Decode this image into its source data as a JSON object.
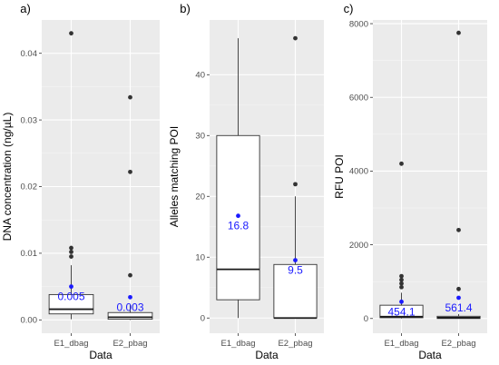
{
  "chart_data": [
    {
      "type": "box",
      "tag": "a)",
      "xlabel": "Data",
      "ylabel": "DNA concentration (ng/µL)",
      "ylim": [
        -0.002,
        0.045
      ],
      "yticks": [
        0.0,
        0.01,
        0.02,
        0.03,
        0.04
      ],
      "ytick_labels": [
        "0.00",
        "0.01",
        "0.02",
        "0.03",
        "0.04"
      ],
      "categories": [
        "E1_dbag",
        "E2_pbag"
      ],
      "boxes": [
        {
          "category": "E1_dbag",
          "q1": 0.0009,
          "median": 0.0016,
          "q3": 0.0038,
          "whisker_low": 0.0001,
          "whisker_high": 0.0082,
          "outliers": [
            0.0095,
            0.0102,
            0.0108,
            0.043
          ],
          "mean": 0.005,
          "mean_label": "0.005"
        },
        {
          "category": "E2_pbag",
          "q1": 0.0001,
          "median": 0.0004,
          "q3": 0.0011,
          "whisker_low": 0.0,
          "whisker_high": 0.0022,
          "outliers": [
            0.0067,
            0.0222,
            0.0334
          ],
          "mean": 0.0034,
          "mean_label": "0.003"
        }
      ]
    },
    {
      "type": "box",
      "tag": "b)",
      "xlabel": "Data",
      "ylabel": "Alleles matching POI",
      "ylim": [
        -2.5,
        49
      ],
      "yticks": [
        0,
        10,
        20,
        30,
        40
      ],
      "ytick_labels": [
        "0",
        "10",
        "20",
        "30",
        "40"
      ],
      "categories": [
        "E1_dbag",
        "E2_pbag"
      ],
      "boxes": [
        {
          "category": "E1_dbag",
          "q1": 3,
          "median": 8,
          "q3": 30,
          "whisker_low": 0,
          "whisker_high": 46,
          "outliers": [],
          "mean": 16.8,
          "mean_label": "16.8"
        },
        {
          "category": "E2_pbag",
          "q1": 0,
          "median": 0,
          "q3": 8.8,
          "whisker_low": 0,
          "whisker_high": 20,
          "outliers": [
            22,
            46
          ],
          "mean": 9.5,
          "mean_label": "9.5"
        }
      ]
    },
    {
      "type": "box",
      "tag": "c)",
      "xlabel": "Data",
      "ylabel": "RFU POI",
      "ylim": [
        -400,
        8100
      ],
      "yticks": [
        0,
        2000,
        4000,
        6000,
        8000
      ],
      "ytick_labels": [
        "0",
        "2000",
        "4000",
        "6000",
        "8000"
      ],
      "categories": [
        "E1_dbag",
        "E2_pbag"
      ],
      "boxes": [
        {
          "category": "E1_dbag",
          "q1": 20,
          "median": 50,
          "q3": 360,
          "whisker_low": 0,
          "whisker_high": 700,
          "outliers": [
            850,
            950,
            1050,
            1150,
            4200
          ],
          "mean": 454.1,
          "mean_label": "454.1"
        },
        {
          "category": "E2_pbag",
          "q1": 0,
          "median": 20,
          "q3": 60,
          "whisker_low": 0,
          "whisker_high": 120,
          "outliers": [
            800,
            2400,
            7750
          ],
          "mean": 561.4,
          "mean_label": "561.4"
        }
      ]
    }
  ]
}
